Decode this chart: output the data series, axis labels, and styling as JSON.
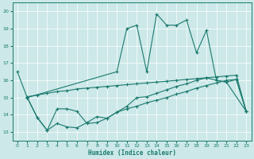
{
  "background_color": "#cce8e8",
  "line_color": "#1a7a6e",
  "xlabel": "Humidex (Indice chaleur)",
  "xlim": [
    -0.5,
    23.5
  ],
  "ylim": [
    12.5,
    20.5
  ],
  "xticks": [
    0,
    1,
    2,
    3,
    4,
    5,
    6,
    7,
    8,
    9,
    10,
    11,
    12,
    13,
    14,
    15,
    16,
    17,
    18,
    19,
    20,
    21,
    22,
    23
  ],
  "yticks": [
    13,
    14,
    15,
    16,
    17,
    18,
    19,
    20
  ],
  "line1_x": [
    0,
    1,
    10,
    11,
    12,
    13,
    14,
    15,
    16,
    17,
    18,
    19,
    20,
    21,
    23
  ],
  "line1_y": [
    16.5,
    15.0,
    16.5,
    19.0,
    19.2,
    16.5,
    19.85,
    19.2,
    19.2,
    19.5,
    17.6,
    18.9,
    16.0,
    15.9,
    14.2
  ],
  "line2_x": [
    1,
    2,
    3,
    4,
    5,
    6,
    7,
    8,
    9,
    10,
    11,
    12,
    13,
    14,
    15,
    16,
    17,
    18,
    19,
    20,
    21,
    22,
    23
  ],
  "line2_y": [
    15.0,
    13.85,
    13.1,
    14.35,
    14.35,
    14.2,
    13.5,
    13.55,
    13.8,
    14.15,
    14.5,
    15.0,
    15.05,
    15.25,
    15.45,
    15.65,
    15.8,
    16.0,
    16.15,
    16.0,
    15.9,
    16.05,
    14.2
  ],
  "line3_x": [
    1,
    2,
    3,
    4,
    5,
    6,
    7,
    8,
    9,
    10,
    11,
    12,
    13,
    14,
    15,
    16,
    17,
    18,
    19,
    20,
    21,
    22,
    23
  ],
  "line3_y": [
    15.0,
    13.85,
    13.1,
    13.5,
    13.3,
    13.25,
    13.55,
    13.9,
    13.8,
    14.15,
    14.35,
    14.5,
    14.7,
    14.85,
    15.0,
    15.2,
    15.35,
    15.55,
    15.7,
    15.85,
    16.0,
    16.05,
    14.2
  ],
  "line4_x": [
    1,
    2,
    3,
    4,
    5,
    6,
    7,
    8,
    9,
    10,
    11,
    12,
    13,
    14,
    15,
    16,
    17,
    18,
    19,
    20,
    21,
    22,
    23
  ],
  "line4_y": [
    15.05,
    15.15,
    15.25,
    15.35,
    15.4,
    15.5,
    15.55,
    15.6,
    15.65,
    15.7,
    15.75,
    15.8,
    15.85,
    15.9,
    15.95,
    16.0,
    16.05,
    16.1,
    16.15,
    16.2,
    16.25,
    16.3,
    14.2
  ]
}
